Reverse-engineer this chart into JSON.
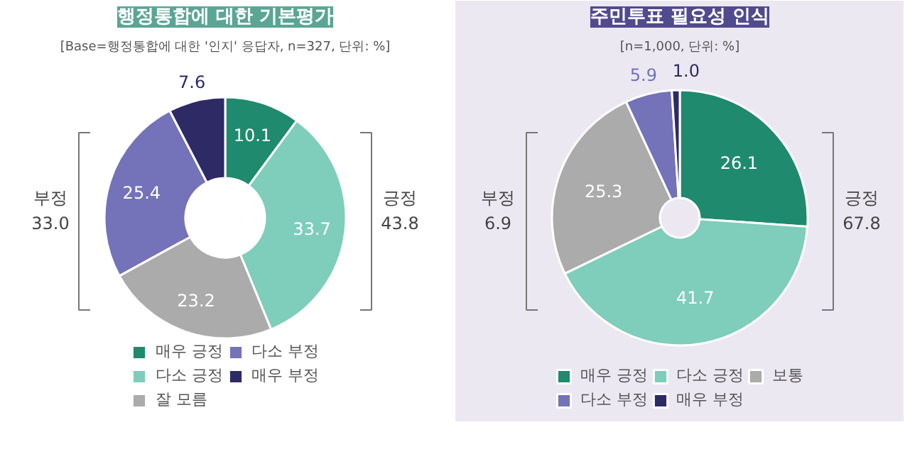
{
  "chart_data": [
    {
      "type": "donut",
      "title": "행정통합에 대한 기본평가",
      "subtitle": "[Base=행정통합에 대한 '인지' 응답자, n=327, 단위: %]",
      "categories": [
        "매우 긍정",
        "다소 긍정",
        "잘 모름",
        "다소 부정",
        "매우 부정"
      ],
      "values": [
        10.1,
        33.7,
        23.2,
        25.4,
        7.6
      ],
      "colors": [
        "#1f8a6e",
        "#7fcdbb",
        "#ababab",
        "#7472b8",
        "#2e2a66"
      ],
      "data_labels": true,
      "legend": "bottom",
      "annotations": [
        "부정\n33.0",
        "긍정\n43.8"
      ]
    },
    {
      "type": "donut",
      "title": "주민투표 필요성 인식",
      "subtitle": "[n=1,000, 단위: %]",
      "categories": [
        "매우 긍정",
        "다소 긍정",
        "보통",
        "다소 부정",
        "매우 부정"
      ],
      "values": [
        26.1,
        41.7,
        25.3,
        5.9,
        1.0
      ],
      "value_labels": [
        "26.1",
        "41.7",
        "25.3",
        "5.9",
        "1.0"
      ],
      "colors": [
        "#1f8a6e",
        "#7fcdbb",
        "#ababab",
        "#7472b8",
        "#2e2a66"
      ],
      "legend": "bottom",
      "annotations": [
        "부정\n6.9",
        "긍정\n67.8"
      ]
    }
  ]
}
